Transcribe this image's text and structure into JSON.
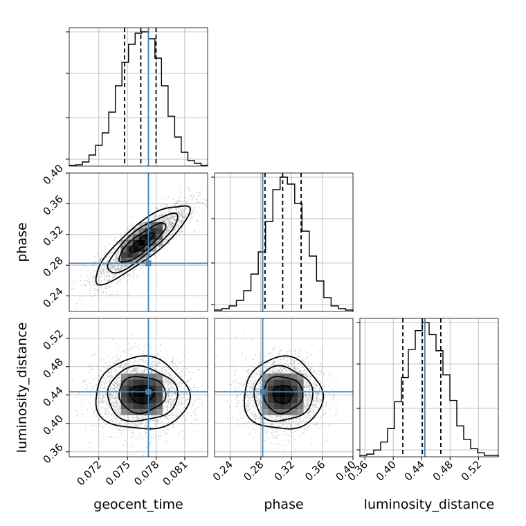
{
  "chart_data": {
    "type": "corner",
    "parameters": [
      "geocent_time",
      "phase",
      "luminosity_distance"
    ],
    "truths": {
      "geocent_time": 0.0772,
      "phase": 0.2825,
      "luminosity_distance": 0.4445
    },
    "quantiles": {
      "geocent_time": [
        0.0747,
        0.0764,
        0.078
      ],
      "phase": [
        0.2855,
        0.3085,
        0.3325
      ],
      "luminosity_distance": [
        0.4135,
        0.441,
        0.467
      ]
    },
    "ranges": {
      "geocent_time": [
        0.0689,
        0.0834
      ],
      "phase": [
        0.2198,
        0.4
      ],
      "luminosity_distance": [
        0.353,
        0.548
      ]
    },
    "ticks": {
      "geocent_time": [
        {
          "v": 0.072,
          "label": "0.072"
        },
        {
          "v": 0.075,
          "label": "0.075"
        },
        {
          "v": 0.078,
          "label": "0.078"
        },
        {
          "v": 0.081,
          "label": "0.081"
        }
      ],
      "phase": [
        {
          "v": 0.24,
          "label": "0.24"
        },
        {
          "v": 0.28,
          "label": "0.28"
        },
        {
          "v": 0.32,
          "label": "0.32"
        },
        {
          "v": 0.36,
          "label": "0.36"
        },
        {
          "v": 0.4,
          "label": "0.40"
        }
      ],
      "luminosity_distance": [
        {
          "v": 0.36,
          "label": "0.36"
        },
        {
          "v": 0.4,
          "label": "0.40"
        },
        {
          "v": 0.44,
          "label": "0.44"
        },
        {
          "v": 0.48,
          "label": "0.48"
        },
        {
          "v": 0.52,
          "label": "0.52"
        }
      ]
    },
    "histograms": {
      "geocent_time": {
        "edges": [
          0.0689,
          0.0834
        ],
        "counts": [
          0.5,
          1,
          3,
          8,
          15,
          24,
          39,
          58,
          75,
          88,
          96,
          97,
          92,
          78,
          58,
          36,
          21,
          10,
          4,
          2,
          0.5
        ]
      },
      "phase": {
        "edges": [
          0.2198,
          0.4
        ],
        "counts": [
          1,
          2,
          4,
          8,
          15,
          27,
          43,
          65,
          88,
          97,
          92,
          78,
          58,
          40,
          22,
          10,
          4,
          2,
          1
        ]
      },
      "luminosity_distance": {
        "edges": [
          0.353,
          0.548
        ],
        "counts": [
          1,
          2,
          5,
          11,
          21,
          41,
          59,
          80,
          94,
          100,
          91,
          79,
          61,
          42,
          23,
          13,
          6,
          3,
          1,
          1
        ]
      }
    },
    "joint": {
      "phase_vs_geocent_time": {
        "center": [
          0.0765,
          0.309
        ],
        "spread": [
          0.00245,
          0.0255
        ],
        "correlation": 0.85
      },
      "luminosity_distance_vs_geocent_time": {
        "center": [
          0.0765,
          0.441
        ],
        "spread": [
          0.00245,
          0.0255
        ],
        "correlation": 0.0
      },
      "luminosity_distance_vs_phase": {
        "center": [
          0.3085,
          0.441
        ],
        "spread": [
          0.0255,
          0.0255
        ],
        "correlation": 0.0
      }
    },
    "contour_levels_sigma": [
      0.5,
      1.0,
      1.5,
      2.0
    ],
    "colors": {
      "truth": "#4682b4",
      "line": "#000000",
      "grid": "#b0b0b0"
    }
  }
}
